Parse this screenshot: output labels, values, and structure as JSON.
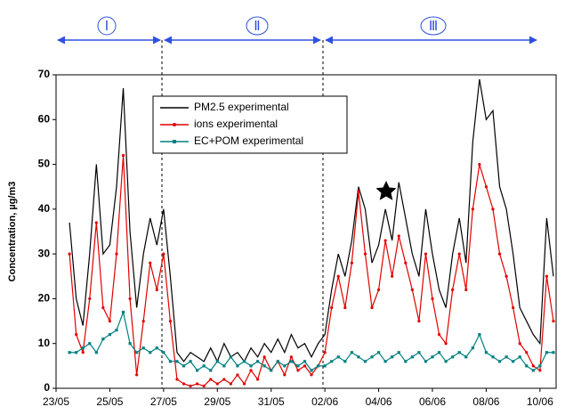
{
  "chart_data": {
    "type": "line",
    "y_label": "Concentration, µg/m3",
    "annotations": [
      "Ⅰ",
      "Ⅱ",
      "Ⅲ"
    ],
    "x": [
      0.5,
      0.75,
      1,
      1.25,
      1.5,
      1.75,
      2,
      2.25,
      2.5,
      2.75,
      3,
      3.25,
      3.5,
      3.75,
      4,
      4.25,
      4.5,
      4.75,
      5,
      5.25,
      5.5,
      5.75,
      6,
      6.25,
      6.5,
      6.75,
      7,
      7.25,
      7.5,
      7.75,
      8,
      8.25,
      8.5,
      8.75,
      9,
      9.25,
      9.5,
      9.75,
      10,
      10.25,
      10.5,
      10.75,
      11,
      11.25,
      11.5,
      11.75,
      12,
      12.25,
      12.5,
      12.75,
      13,
      13.25,
      13.5,
      13.75,
      14,
      14.25,
      14.5,
      14.75,
      15,
      15.25,
      15.5,
      15.75,
      16,
      16.25,
      16.5,
      16.75,
      17,
      17.25,
      17.5,
      17.75,
      18,
      18.25,
      18.5
    ],
    "series": [
      {
        "name": "PM2.5 experimental",
        "color": "#000000",
        "marker": "none",
        "values": [
          37,
          20,
          14,
          30,
          50,
          30,
          32,
          45,
          67,
          35,
          18,
          30,
          38,
          32,
          40,
          25,
          8,
          6,
          8,
          7,
          6,
          9,
          6,
          10,
          7,
          8,
          6,
          9,
          7,
          10,
          8,
          11,
          8,
          12,
          9,
          10,
          7,
          10,
          12,
          22,
          30,
          25,
          33,
          45,
          40,
          28,
          32,
          40,
          33,
          46,
          38,
          30,
          25,
          40,
          30,
          22,
          18,
          30,
          38,
          28,
          55,
          69,
          60,
          62,
          45,
          40,
          30,
          18,
          15,
          12,
          10,
          38,
          25
        ]
      },
      {
        "name": "ions experimental",
        "color": "#e00000",
        "marker": "circle",
        "values": [
          30,
          12,
          8,
          20,
          37,
          18,
          15,
          30,
          52,
          20,
          3,
          15,
          28,
          22,
          30,
          15,
          2,
          1,
          0.5,
          1,
          0.5,
          2,
          1,
          2,
          1,
          3,
          1,
          4,
          2,
          7,
          4,
          6,
          3,
          7,
          4,
          5,
          3,
          5,
          8,
          18,
          25,
          18,
          28,
          44,
          30,
          18,
          22,
          33,
          25,
          34,
          28,
          22,
          15,
          30,
          20,
          12,
          10,
          22,
          30,
          22,
          40,
          50,
          45,
          40,
          30,
          25,
          18,
          10,
          8,
          5,
          4,
          25,
          15
        ]
      },
      {
        "name": "EC+POM experimental",
        "color": "#008080",
        "marker": "square",
        "values": [
          8,
          8,
          9,
          10,
          8,
          11,
          12,
          13,
          17,
          10,
          8,
          9,
          8,
          9,
          8,
          6,
          6,
          5,
          6,
          4,
          5,
          4,
          6,
          5,
          7,
          5,
          6,
          5,
          6,
          5,
          4,
          6,
          5,
          6,
          5,
          6,
          4,
          5,
          5,
          6,
          7,
          6,
          8,
          7,
          6,
          7,
          8,
          6,
          7,
          8,
          6,
          7,
          8,
          6,
          7,
          8,
          6,
          7,
          8,
          7,
          9,
          12,
          8,
          7,
          6,
          7,
          6,
          7,
          5,
          4,
          5,
          8,
          8
        ]
      }
    ],
    "xlim": [
      0,
      18.6
    ],
    "xticks": [
      {
        "value": 0,
        "label": "23/05"
      },
      {
        "value": 2,
        "label": "25/05"
      },
      {
        "value": 4,
        "label": "27/05"
      },
      {
        "value": 6,
        "label": "29/05"
      },
      {
        "value": 8,
        "label": "31/05"
      },
      {
        "value": 10,
        "label": "02/06"
      },
      {
        "value": 12,
        "label": "04/06"
      },
      {
        "value": 14,
        "label": "06/06"
      },
      {
        "value": 16,
        "label": "08/06"
      },
      {
        "value": 18,
        "label": "10/06"
      }
    ],
    "ylim": [
      0,
      70
    ],
    "yticks": [
      0,
      10,
      20,
      30,
      40,
      50,
      60,
      70
    ],
    "legend": "top"
  }
}
